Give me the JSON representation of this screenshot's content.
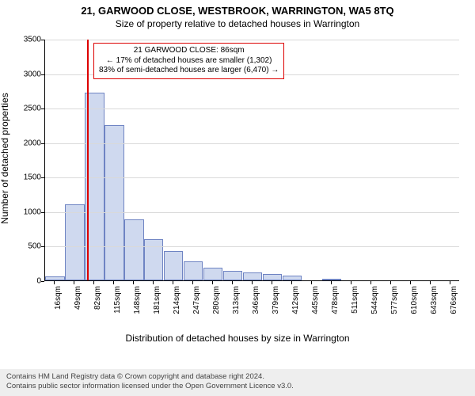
{
  "title": "21, GARWOOD CLOSE, WESTBROOK, WARRINGTON, WA5 8TQ",
  "subtitle": "Size of property relative to detached houses in Warrington",
  "chart": {
    "type": "histogram",
    "background_color": "#ffffff",
    "grid_color": "#d9d9d9",
    "bar_fill": "#cfd9ef",
    "bar_stroke": "#6f84c3",
    "axis_color": "#000000",
    "tick_fontsize": 10,
    "label_fontsize": 12,
    "ylabel": "Number of detached properties",
    "xlabel": "Distribution of detached houses by size in Warrington",
    "ylim": [
      0,
      3500
    ],
    "ytick_step": 500,
    "x_start": 16,
    "x_step": 33,
    "n_bins": 21,
    "x_tick_unit": "sqm",
    "values": [
      60,
      1100,
      2720,
      2250,
      880,
      600,
      420,
      270,
      180,
      140,
      120,
      90,
      70,
      0,
      20,
      0,
      0,
      0,
      0,
      0,
      0
    ],
    "marker": {
      "value": 86,
      "color": "#dd0000"
    },
    "callout": {
      "border_color": "#dd0000",
      "bg_color": "#ffffff",
      "lines": [
        "21 GARWOOD CLOSE: 86sqm",
        "← 17% of detached houses are smaller (1,302)",
        "83% of semi-detached houses are larger (6,470) →"
      ],
      "fontsize": 10
    }
  },
  "footer": {
    "line1": "Contains HM Land Registry data © Crown copyright and database right 2024.",
    "line2": "Contains public sector information licensed under the Open Government Licence v3.0.",
    "bg_color": "#eeeeee",
    "text_color": "#444444"
  }
}
